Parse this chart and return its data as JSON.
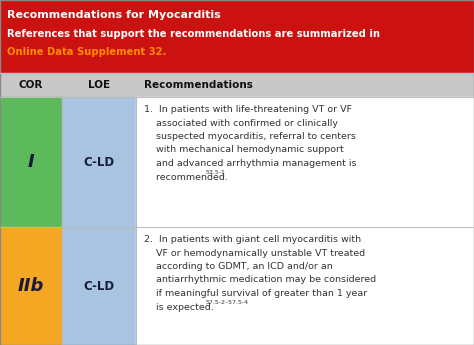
{
  "title_line1": "Recommendations for Myocarditis",
  "title_line2": "References that support the recommendations are summarized in",
  "title_line3": "Online Data Supplement 32.",
  "title_bg": "#cc1111",
  "title_text_color": "#ffffff",
  "title_link_color": "#ff8c00",
  "header_bg": "#c8c8c8",
  "header_text_color": "#111111",
  "col_headers": [
    "COR",
    "LOE",
    "Recommendations"
  ],
  "row1_cor": "I",
  "row1_loe": "C-LD",
  "row1_cor_bg": "#5cba5c",
  "row1_loe_bg": "#a8c4e0",
  "row1_rec_lines": [
    "1.  In patients with life-threatening VT or VF",
    "    associated with confirmed or clinically",
    "    suspected myocarditis, referral to centers",
    "    with mechanical hemodynamic support",
    "    and advanced arrhythmia management is",
    "    recommended."
  ],
  "row1_superscript": "57.5-1",
  "row2_cor": "IIb",
  "row2_loe": "C-LD",
  "row2_cor_bg": "#f5a623",
  "row2_loe_bg": "#a8c4e0",
  "row2_rec_lines": [
    "2.  In patients with giant cell myocarditis with",
    "    VF or hemodynamically unstable VT treated",
    "    according to GDMT, an ICD and/or an",
    "    antiarrhythmic medication may be considered",
    "    if meaningful survival of greater than 1 year",
    "    is expected."
  ],
  "row2_superscript": "57.5-2–57.5-4",
  "row_bg": "#ffffff",
  "border_color": "#bbbbbb",
  "text_color": "#333333",
  "cor_loe_text_color": "#1a1a3e"
}
